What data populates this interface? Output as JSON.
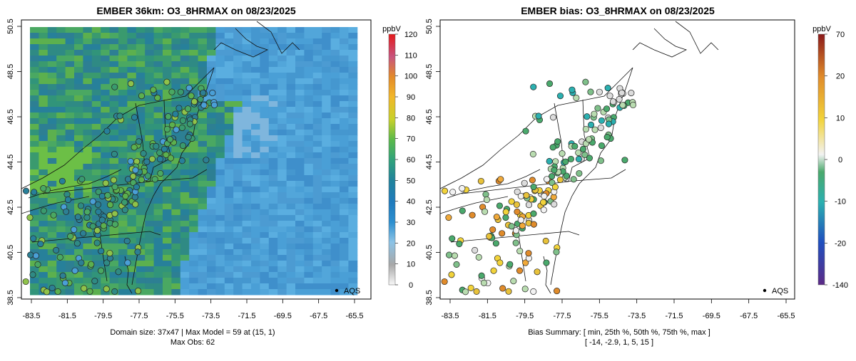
{
  "left_panel": {
    "title": "EMBER 36km: O3_8HRMAX on 08/23/2025",
    "legend_label": "AQS",
    "colorbar": {
      "unit": "ppbV",
      "ticks": [
        "0",
        "10",
        "20",
        "30",
        "40",
        "50",
        "60",
        "70",
        "80",
        "90",
        "100",
        "110",
        "120"
      ],
      "colors": [
        "#f7f7f7",
        "#a8a8a8",
        "#8cc3e6",
        "#2c8fd0",
        "#1f7bbd",
        "#21849b",
        "#31a37a",
        "#5cba4a",
        "#c8d12b",
        "#f2b72a",
        "#e38a2a",
        "#c8547e",
        "#e41a1c"
      ]
    },
    "footer_line1": "Domain size: 37x47 | Max Model = 59 at (15, 1)",
    "footer_line2": "Max Obs: 62"
  },
  "right_panel": {
    "title": "EMBER bias: O3_8HRMAX on 08/23/2025",
    "legend_label": "AQS",
    "colorbar": {
      "unit": "ppbV",
      "ticks": [
        "-140",
        "-20",
        "-10",
        "0",
        "10",
        "20",
        "70"
      ],
      "colors": [
        "#5b2a86",
        "#1f4fbf",
        "#2bb0b0",
        "#4aa96c",
        "#f2f2f2",
        "#f2d33a",
        "#e08b2a",
        "#8b1a1a"
      ]
    },
    "footer_line1": "Bias Summary: [ min, 25th %, 50th %, 75th %, max ]",
    "footer_line2": "[ -14,   -2.9,   1,   5,   15 ]"
  },
  "axes": {
    "x_ticks": [
      "-83.5",
      "-81.5",
      "-79.5",
      "-77.5",
      "-75.5",
      "-73.5",
      "-71.5",
      "-69.5",
      "-67.5",
      "-65.5"
    ],
    "y_ticks": [
      "38.5",
      "40.5",
      "42.5",
      "44.5",
      "46.5",
      "48.5",
      "50.5"
    ]
  },
  "colors": {
    "ocean_model": "#4a9fd6",
    "land_model": "#2f8a84"
  }
}
